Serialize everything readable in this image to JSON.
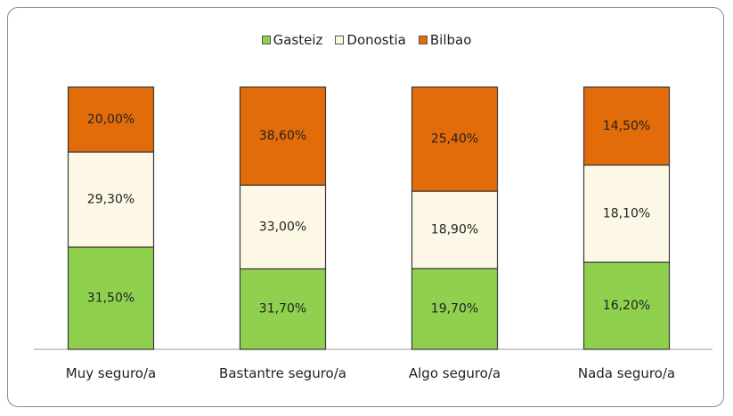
{
  "chart_data": {
    "type": "bar",
    "stacking": "percent",
    "categories": [
      "Muy seguro/a",
      "Bastantre seguro/a",
      "Algo seguro/a",
      "Nada seguro/a"
    ],
    "series": [
      {
        "name": "Gasteiz",
        "color": "#8fd14f",
        "values": [
          31.5,
          31.7,
          19.7,
          16.2
        ],
        "value_labels": [
          "31,50%",
          "31,70%",
          "19,70%",
          "16,20%"
        ]
      },
      {
        "name": "Donostia",
        "color": "#fdf8e6",
        "values": [
          29.3,
          33.0,
          18.9,
          18.1
        ],
        "value_labels": [
          "29,30%",
          "33,00%",
          "18,90%",
          "18,10%"
        ]
      },
      {
        "name": "Bilbao",
        "color": "#e36c0a",
        "values": [
          20.0,
          38.6,
          25.4,
          14.5
        ],
        "value_labels": [
          "20,00%",
          "38,60%",
          "25,40%",
          "14,50%"
        ]
      }
    ],
    "legend": "top"
  }
}
